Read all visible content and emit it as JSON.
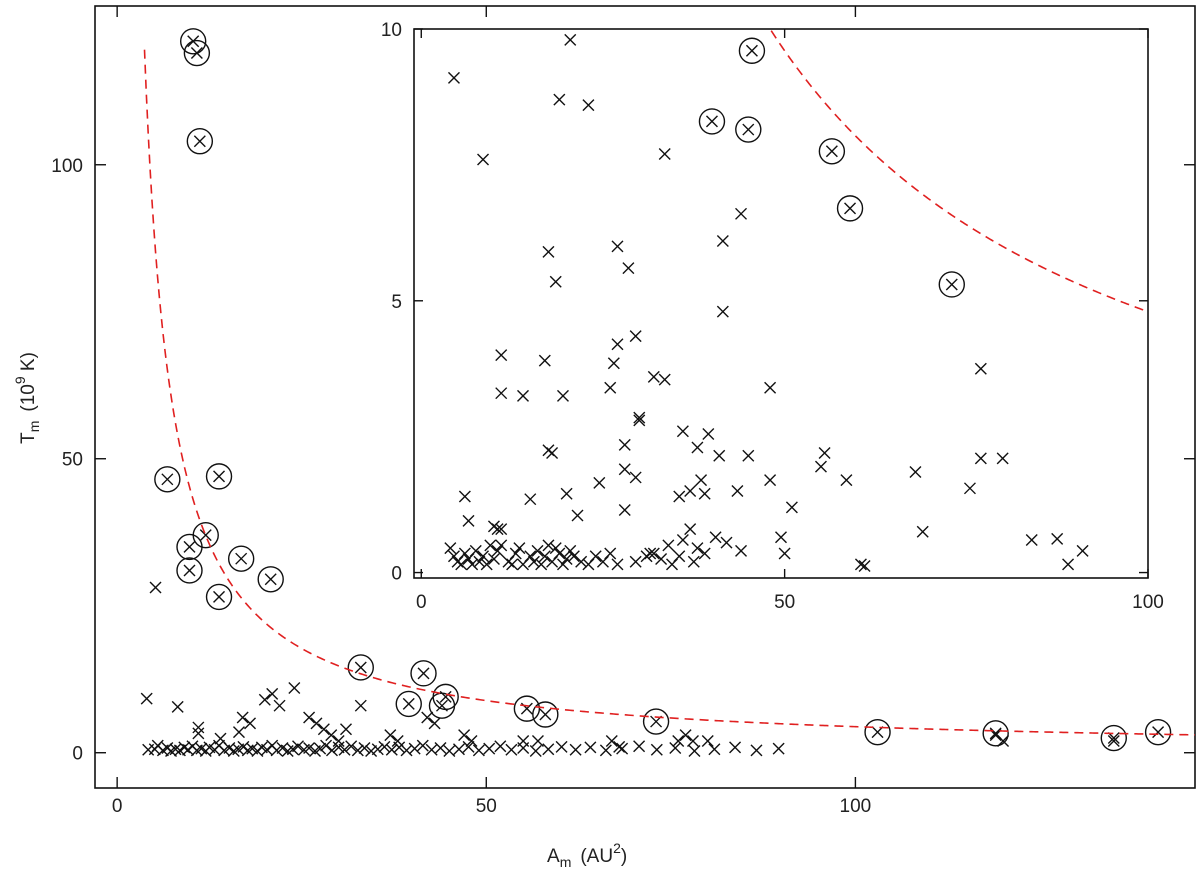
{
  "chart_data": [
    {
      "type": "scatter",
      "panel": "main",
      "xlabel": "A",
      "xlabel_sub": "m",
      "xlabel_unit_open": "(AU",
      "xlabel_unit_sup": "2",
      "xlabel_unit_close": ")",
      "ylabel": "T",
      "ylabel_sub": "m",
      "ylabel_unit_open": "(10",
      "ylabel_unit_sup": "9",
      "ylabel_unit_close": " K)",
      "xlim": [
        -3,
        146
      ],
      "ylim": [
        -6,
        127
      ],
      "xticks": [
        0,
        50,
        100
      ],
      "xtick_labels": [
        "0",
        "50",
        "100"
      ],
      "yticks": [
        0,
        50,
        100
      ],
      "ytick_labels": [
        "0",
        "50",
        "100"
      ],
      "fit_curve": {
        "form": "T = C / A",
        "C": 443,
        "color": "#e02020",
        "style": "dashed"
      },
      "series": [
        {
          "name": "crosses",
          "marker": "x",
          "points": [
            [
              5.2,
              28.1
            ],
            [
              4,
              9.2
            ],
            [
              8.2,
              7.8
            ],
            [
              11,
              4.3
            ],
            [
              11,
              3.3
            ],
            [
              14,
              2.4
            ],
            [
              16.5,
              3.5
            ],
            [
              17,
              6
            ],
            [
              18,
              5
            ],
            [
              20,
              9
            ],
            [
              21,
              10
            ],
            [
              22,
              8
            ],
            [
              24,
              11
            ],
            [
              26,
              6
            ],
            [
              27,
              5
            ],
            [
              28,
              4
            ],
            [
              29,
              3
            ],
            [
              30,
              2
            ],
            [
              31,
              4
            ],
            [
              33,
              8
            ],
            [
              37,
              3
            ],
            [
              38,
              2
            ],
            [
              42,
              6
            ],
            [
              43,
              5
            ],
            [
              47,
              3
            ],
            [
              48,
              2
            ],
            [
              55,
              2
            ],
            [
              57,
              2
            ],
            [
              67,
              2
            ],
            [
              68,
              1
            ],
            [
              76,
              2
            ],
            [
              77,
              3
            ],
            [
              78,
              2
            ],
            [
              80,
              2
            ],
            [
              119,
              3
            ],
            [
              120,
              2
            ],
            [
              135,
              2
            ],
            [
              4.2,
              0.5
            ],
            [
              5.1,
              0.6
            ],
            [
              5.5,
              1.2
            ],
            [
              6.2,
              0.4
            ],
            [
              6.8,
              0.8
            ],
            [
              7.3,
              0.3
            ],
            [
              7.9,
              0.6
            ],
            [
              8.5,
              0.4
            ],
            [
              9.1,
              0.9
            ],
            [
              9.6,
              0.5
            ],
            [
              10.2,
              1.1
            ],
            [
              10.8,
              0.4
            ],
            [
              11.4,
              0.7
            ],
            [
              12,
              0.3
            ],
            [
              12.5,
              0.9
            ],
            [
              13.2,
              0.5
            ],
            [
              13.8,
              1.2
            ],
            [
              14.5,
              0.4
            ],
            [
              15.2,
              0.8
            ],
            [
              15.8,
              0.3
            ],
            [
              16.4,
              0.6
            ],
            [
              17.1,
              1
            ],
            [
              17.7,
              0.4
            ],
            [
              18.3,
              0.7
            ],
            [
              19,
              0.3
            ],
            [
              19.6,
              0.9
            ],
            [
              20.3,
              0.5
            ],
            [
              21,
              1.2
            ],
            [
              21.6,
              0.4
            ],
            [
              22.4,
              0.8
            ],
            [
              23.1,
              0.3
            ],
            [
              23.8,
              0.6
            ],
            [
              24.5,
              1.1
            ],
            [
              25.3,
              0.5
            ],
            [
              26,
              0.8
            ],
            [
              26.8,
              0.3
            ],
            [
              27.5,
              0.7
            ],
            [
              28.3,
              1.2
            ],
            [
              29.1,
              0.4
            ],
            [
              30,
              0.9
            ],
            [
              30.8,
              0.5
            ],
            [
              31.7,
              1.1
            ],
            [
              32.6,
              0.4
            ],
            [
              33.5,
              0.8
            ],
            [
              34.4,
              0.3
            ],
            [
              35.3,
              0.6
            ],
            [
              36.2,
              1
            ],
            [
              37.2,
              0.5
            ],
            [
              38.2,
              0.9
            ],
            [
              39.2,
              0.4
            ],
            [
              40.3,
              0.7
            ],
            [
              41.4,
              1.2
            ],
            [
              42.6,
              0.5
            ],
            [
              43.8,
              0.8
            ],
            [
              45,
              0.3
            ],
            [
              46.3,
              0.6
            ],
            [
              47.6,
              1
            ],
            [
              49,
              0.4
            ],
            [
              50.4,
              0.7
            ],
            [
              51.9,
              1.1
            ],
            [
              53.4,
              0.5
            ],
            [
              55,
              0.8
            ],
            [
              56.7,
              0.3
            ],
            [
              58.4,
              0.6
            ],
            [
              60.2,
              1
            ],
            [
              62.1,
              0.5
            ],
            [
              64.1,
              0.9
            ],
            [
              66.2,
              0.4
            ],
            [
              68.4,
              0.7
            ],
            [
              70.7,
              1.1
            ],
            [
              73.1,
              0.5
            ],
            [
              75.6,
              0.8
            ],
            [
              78.2,
              0.3
            ],
            [
              80.9,
              0.6
            ],
            [
              83.7,
              0.9
            ],
            [
              86.6,
              0.4
            ],
            [
              89.6,
              0.7
            ]
          ]
        },
        {
          "name": "circled",
          "marker": "circled-x",
          "points": [
            [
              10.3,
              121
            ],
            [
              10.8,
              119
            ],
            [
              11.2,
              104
            ],
            [
              6.8,
              46.5
            ],
            [
              13.8,
              47
            ],
            [
              12,
              37
            ],
            [
              9.8,
              35
            ],
            [
              9.8,
              31
            ],
            [
              16.8,
              33
            ],
            [
              20.8,
              29.5
            ],
            [
              13.8,
              26.5
            ],
            [
              33,
              14.5
            ],
            [
              41.5,
              13.5
            ],
            [
              44.5,
              9.5
            ],
            [
              39.5,
              8.3
            ],
            [
              44,
              8
            ],
            [
              55.5,
              7.5
            ],
            [
              58,
              6.5
            ],
            [
              73,
              5.3
            ],
            [
              103,
              3.5
            ],
            [
              119,
              3.3
            ],
            [
              135,
              2.5
            ],
            [
              141,
              3.5
            ]
          ]
        }
      ]
    },
    {
      "type": "scatter",
      "panel": "inset",
      "xlim": [
        -1,
        100
      ],
      "ylim": [
        -0.1,
        10
      ],
      "xticks": [
        0,
        50,
        100
      ],
      "xtick_labels": [
        "0",
        "50",
        "100"
      ],
      "yticks": [
        0,
        5,
        10
      ],
      "ytick_labels": [
        "0",
        "5",
        "10"
      ],
      "fit_curve": {
        "form": "T = C / A",
        "C": 480,
        "color": "#e02020",
        "style": "dashed"
      },
      "series": [
        {
          "name": "crosses",
          "marker": "x",
          "points": [
            [
              4.5,
              9.1
            ],
            [
              20.5,
              9.8
            ],
            [
              19,
              8.7
            ],
            [
              23,
              8.6
            ],
            [
              8.5,
              7.6
            ],
            [
              33.5,
              7.7
            ],
            [
              44,
              6.6
            ],
            [
              41.5,
              6.1
            ],
            [
              17.5,
              5.9
            ],
            [
              27,
              6
            ],
            [
              28.5,
              5.6
            ],
            [
              18.5,
              5.35
            ],
            [
              41.5,
              4.8
            ],
            [
              29.5,
              4.35
            ],
            [
              27,
              4.2
            ],
            [
              11,
              4
            ],
            [
              17,
              3.9
            ],
            [
              26.5,
              3.85
            ],
            [
              32,
              3.6
            ],
            [
              33.5,
              3.55
            ],
            [
              77,
              3.75
            ],
            [
              11,
              3.3
            ],
            [
              14,
              3.25
            ],
            [
              19.5,
              3.25
            ],
            [
              26,
              3.4
            ],
            [
              48,
              3.4
            ],
            [
              30,
              2.85
            ],
            [
              30,
              2.8
            ],
            [
              36,
              2.6
            ],
            [
              39.5,
              2.55
            ],
            [
              17.5,
              2.25
            ],
            [
              18,
              2.2
            ],
            [
              28,
              2.35
            ],
            [
              38,
              2.3
            ],
            [
              45,
              2.15
            ],
            [
              41,
              2.15
            ],
            [
              55.5,
              2.2
            ],
            [
              77,
              2.1
            ],
            [
              80,
              2.1
            ],
            [
              28,
              1.9
            ],
            [
              29.5,
              1.75
            ],
            [
              37,
              1.5
            ],
            [
              35.5,
              1.4
            ],
            [
              38.5,
              1.7
            ],
            [
              39,
              1.45
            ],
            [
              43.5,
              1.5
            ],
            [
              48,
              1.7
            ],
            [
              55,
              1.95
            ],
            [
              58.5,
              1.7
            ],
            [
              24.5,
              1.65
            ],
            [
              68,
              1.85
            ],
            [
              75.5,
              1.55
            ],
            [
              6,
              1.4
            ],
            [
              20,
              1.45
            ],
            [
              15,
              1.35
            ],
            [
              51,
              1.2
            ],
            [
              21.5,
              1.05
            ],
            [
              28,
              1.15
            ],
            [
              6.5,
              0.95
            ],
            [
              10,
              0.85
            ],
            [
              10.5,
              0.8
            ],
            [
              11,
              0.8
            ],
            [
              37,
              0.8
            ],
            [
              40.5,
              0.65
            ],
            [
              44,
              0.4
            ],
            [
              49.5,
              0.65
            ],
            [
              69,
              0.75
            ],
            [
              84,
              0.6
            ],
            [
              87.5,
              0.62
            ],
            [
              91,
              0.4
            ],
            [
              89,
              0.15
            ],
            [
              60.5,
              0.15
            ],
            [
              61,
              0.12
            ],
            [
              50,
              0.35
            ],
            [
              31,
              0.3
            ],
            [
              32,
              0.35
            ],
            [
              34,
              0.5
            ],
            [
              36,
              0.6
            ],
            [
              38,
              0.45
            ],
            [
              42,
              0.55
            ],
            [
              4,
              0.45
            ],
            [
              4.5,
              0.3
            ],
            [
              5,
              0.2
            ],
            [
              5.5,
              0.15
            ],
            [
              6,
              0.35
            ],
            [
              6.5,
              0.25
            ],
            [
              7,
              0.15
            ],
            [
              7.5,
              0.4
            ],
            [
              8,
              0.2
            ],
            [
              8.5,
              0.3
            ],
            [
              9,
              0.15
            ],
            [
              9.5,
              0.5
            ],
            [
              10,
              0.25
            ],
            [
              10.5,
              0.4
            ],
            [
              11,
              0.5
            ],
            [
              12,
              0.2
            ],
            [
              12.5,
              0.15
            ],
            [
              13,
              0.35
            ],
            [
              13.5,
              0.45
            ],
            [
              14,
              0.15
            ],
            [
              15,
              0.3
            ],
            [
              15.5,
              0.2
            ],
            [
              16,
              0.4
            ],
            [
              16.5,
              0.15
            ],
            [
              17,
              0.3
            ],
            [
              17.5,
              0.5
            ],
            [
              18,
              0.2
            ],
            [
              18.5,
              0.45
            ],
            [
              19,
              0.35
            ],
            [
              19.5,
              0.15
            ],
            [
              20,
              0.25
            ],
            [
              20.5,
              0.4
            ],
            [
              21,
              0.3
            ],
            [
              22,
              0.2
            ],
            [
              23,
              0.15
            ],
            [
              24,
              0.3
            ],
            [
              25,
              0.2
            ],
            [
              26,
              0.35
            ],
            [
              27,
              0.15
            ],
            [
              29.5,
              0.2
            ],
            [
              31.5,
              0.35
            ],
            [
              33,
              0.25
            ],
            [
              34.5,
              0.15
            ],
            [
              35.5,
              0.3
            ],
            [
              37.5,
              0.2
            ],
            [
              39,
              0.35
            ]
          ]
        },
        {
          "name": "circled",
          "marker": "circled-x",
          "points": [
            [
              45.5,
              9.6
            ],
            [
              40,
              8.3
            ],
            [
              45,
              8.15
            ],
            [
              56.5,
              7.75
            ],
            [
              59,
              6.7
            ],
            [
              73,
              5.3
            ]
          ]
        }
      ]
    }
  ],
  "style": {
    "fit_color": "#e02020",
    "ink_color": "#111111"
  }
}
